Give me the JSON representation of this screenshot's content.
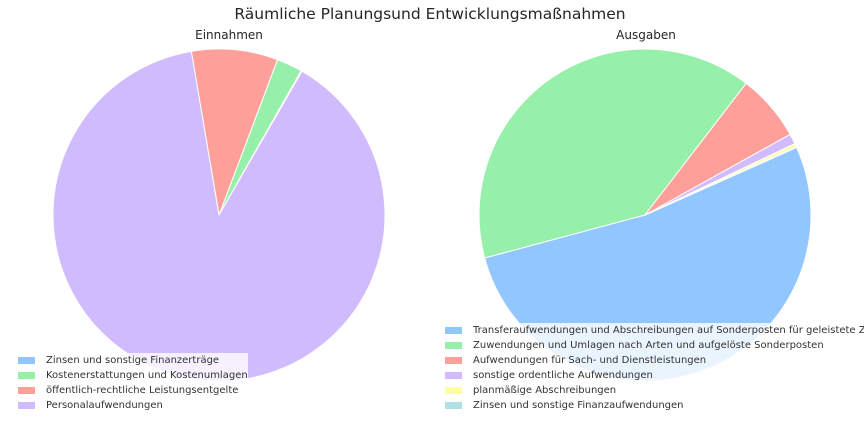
{
  "figure_title": "Räumliche Planungsund Entwicklungsmaßnahmen",
  "chart_data": [
    {
      "type": "pie",
      "title": "Einnahmen",
      "start_angle_deg": 60,
      "direction": "counterclockwise",
      "slices": [
        {
          "label": "Zinsen und sonstige Finanzerträge",
          "value": 0.1,
          "color": "#92c6ff"
        },
        {
          "label": "Kostenerstattungen und Kostenumlagen",
          "value": 2.5,
          "color": "#97f0aa"
        },
        {
          "label": "öffentlich-rechtliche Leistungsentgelte",
          "value": 8.4,
          "color": "#ff9f9a"
        },
        {
          "label": "Personalaufwendungen",
          "value": 89.0,
          "color": "#d0bbff"
        }
      ],
      "legend_position": "lower-left"
    },
    {
      "type": "pie",
      "title": "Ausgaben",
      "start_angle_deg": 24,
      "direction": "clockwise",
      "slices": [
        {
          "label": "Transferaufwendungen und Abschreibungen auf Sonderposten für geleistete Zuwendungen",
          "value": 52.5,
          "color": "#92c6ff"
        },
        {
          "label": "Zuwendungen und Umlagen nach Arten und aufgelöste Sonderposten",
          "value": 39.6,
          "color": "#97f0aa"
        },
        {
          "label": "Aufwendungen für Sach- und Dienstleistungen",
          "value": 6.5,
          "color": "#ff9f9a"
        },
        {
          "label": "sonstige ordentliche Aufwendungen",
          "value": 1.0,
          "color": "#d0bbff"
        },
        {
          "label": "planmäßige Abschreibungen",
          "value": 0.3,
          "color": "#fffea3"
        },
        {
          "label": "Zinsen und sonstige Finanzaufwendungen",
          "value": 0.1,
          "color": "#b0e0e6"
        }
      ],
      "legend_position": "lower-center"
    }
  ]
}
